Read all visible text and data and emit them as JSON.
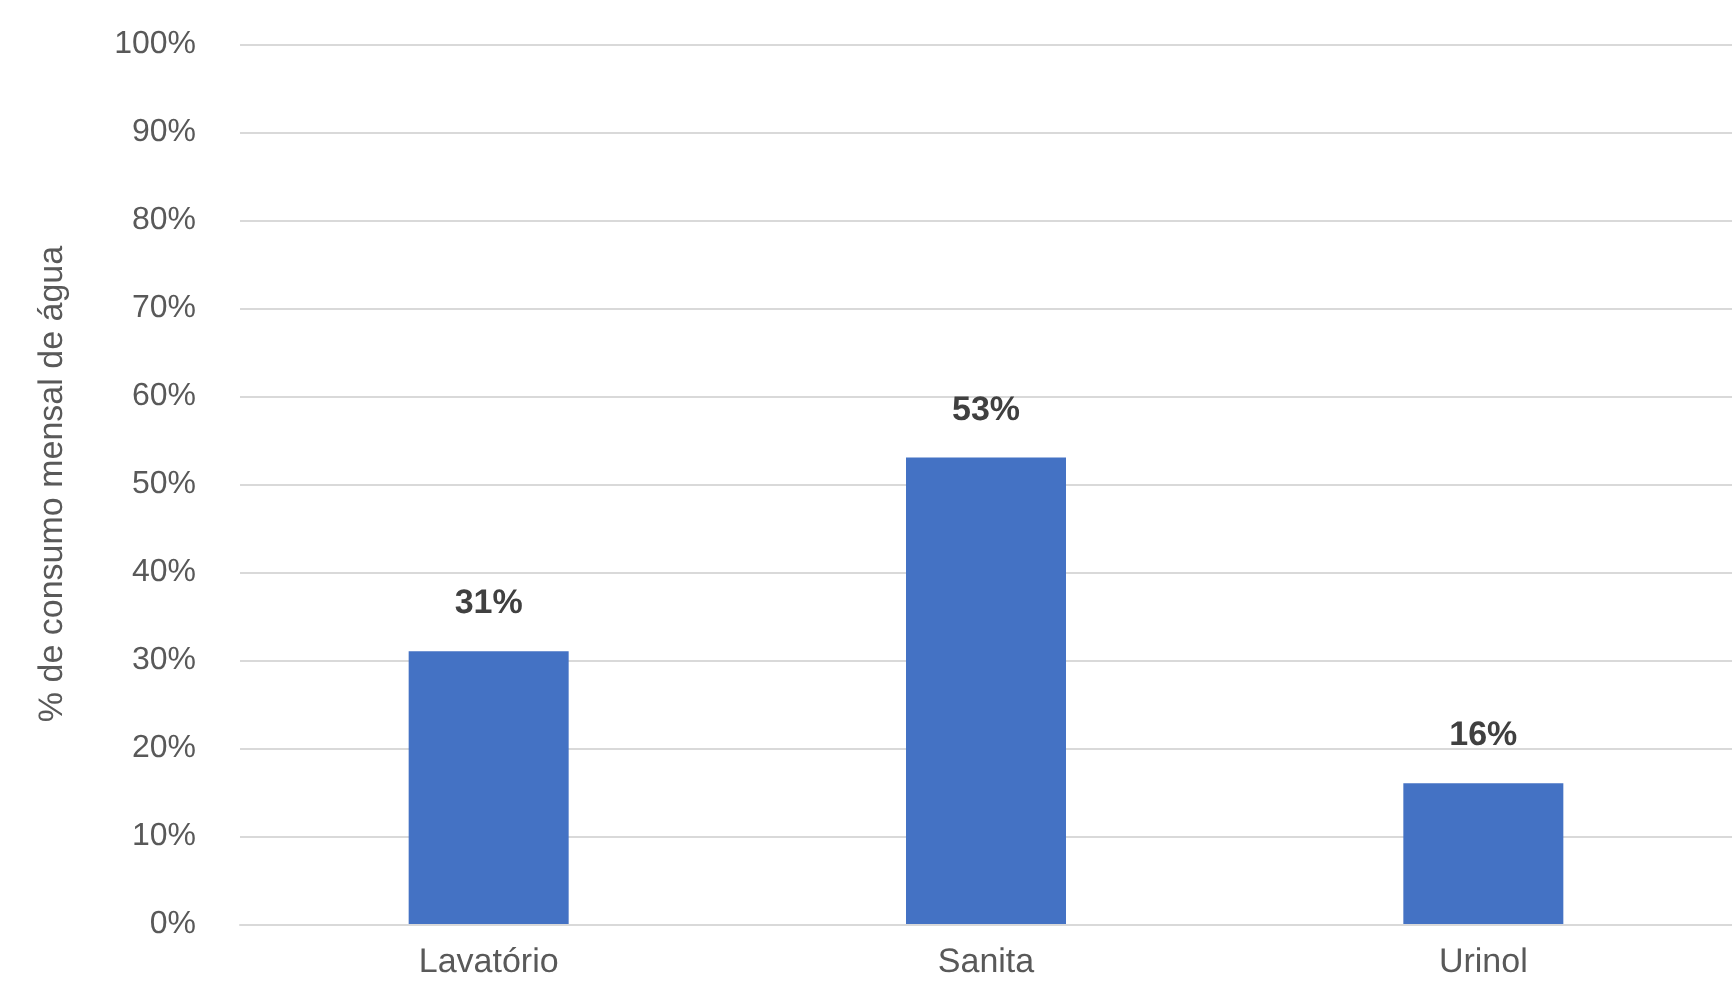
{
  "chart_data": {
    "type": "bar",
    "ylabel": "% de consumo mensal de água",
    "categories": [
      "Lavatório",
      "Sanita",
      "Urinol"
    ],
    "values": [
      31,
      53,
      16
    ],
    "color": "#4472c4",
    "value_labels": [
      "31%",
      "53%",
      "16%"
    ],
    "ylim": [
      0,
      100
    ],
    "yticks": [
      {
        "value": 0,
        "label": "0%"
      },
      {
        "value": 10,
        "label": "10%"
      },
      {
        "value": 20,
        "label": "20%"
      },
      {
        "value": 30,
        "label": "30%"
      },
      {
        "value": 40,
        "label": "40%"
      },
      {
        "value": 50,
        "label": "50%"
      },
      {
        "value": 60,
        "label": "60%"
      },
      {
        "value": 70,
        "label": "70%"
      },
      {
        "value": 80,
        "label": "80%"
      },
      {
        "value": 90,
        "label": "90%"
      },
      {
        "value": 100,
        "label": "100%"
      }
    ],
    "grid": "y"
  }
}
